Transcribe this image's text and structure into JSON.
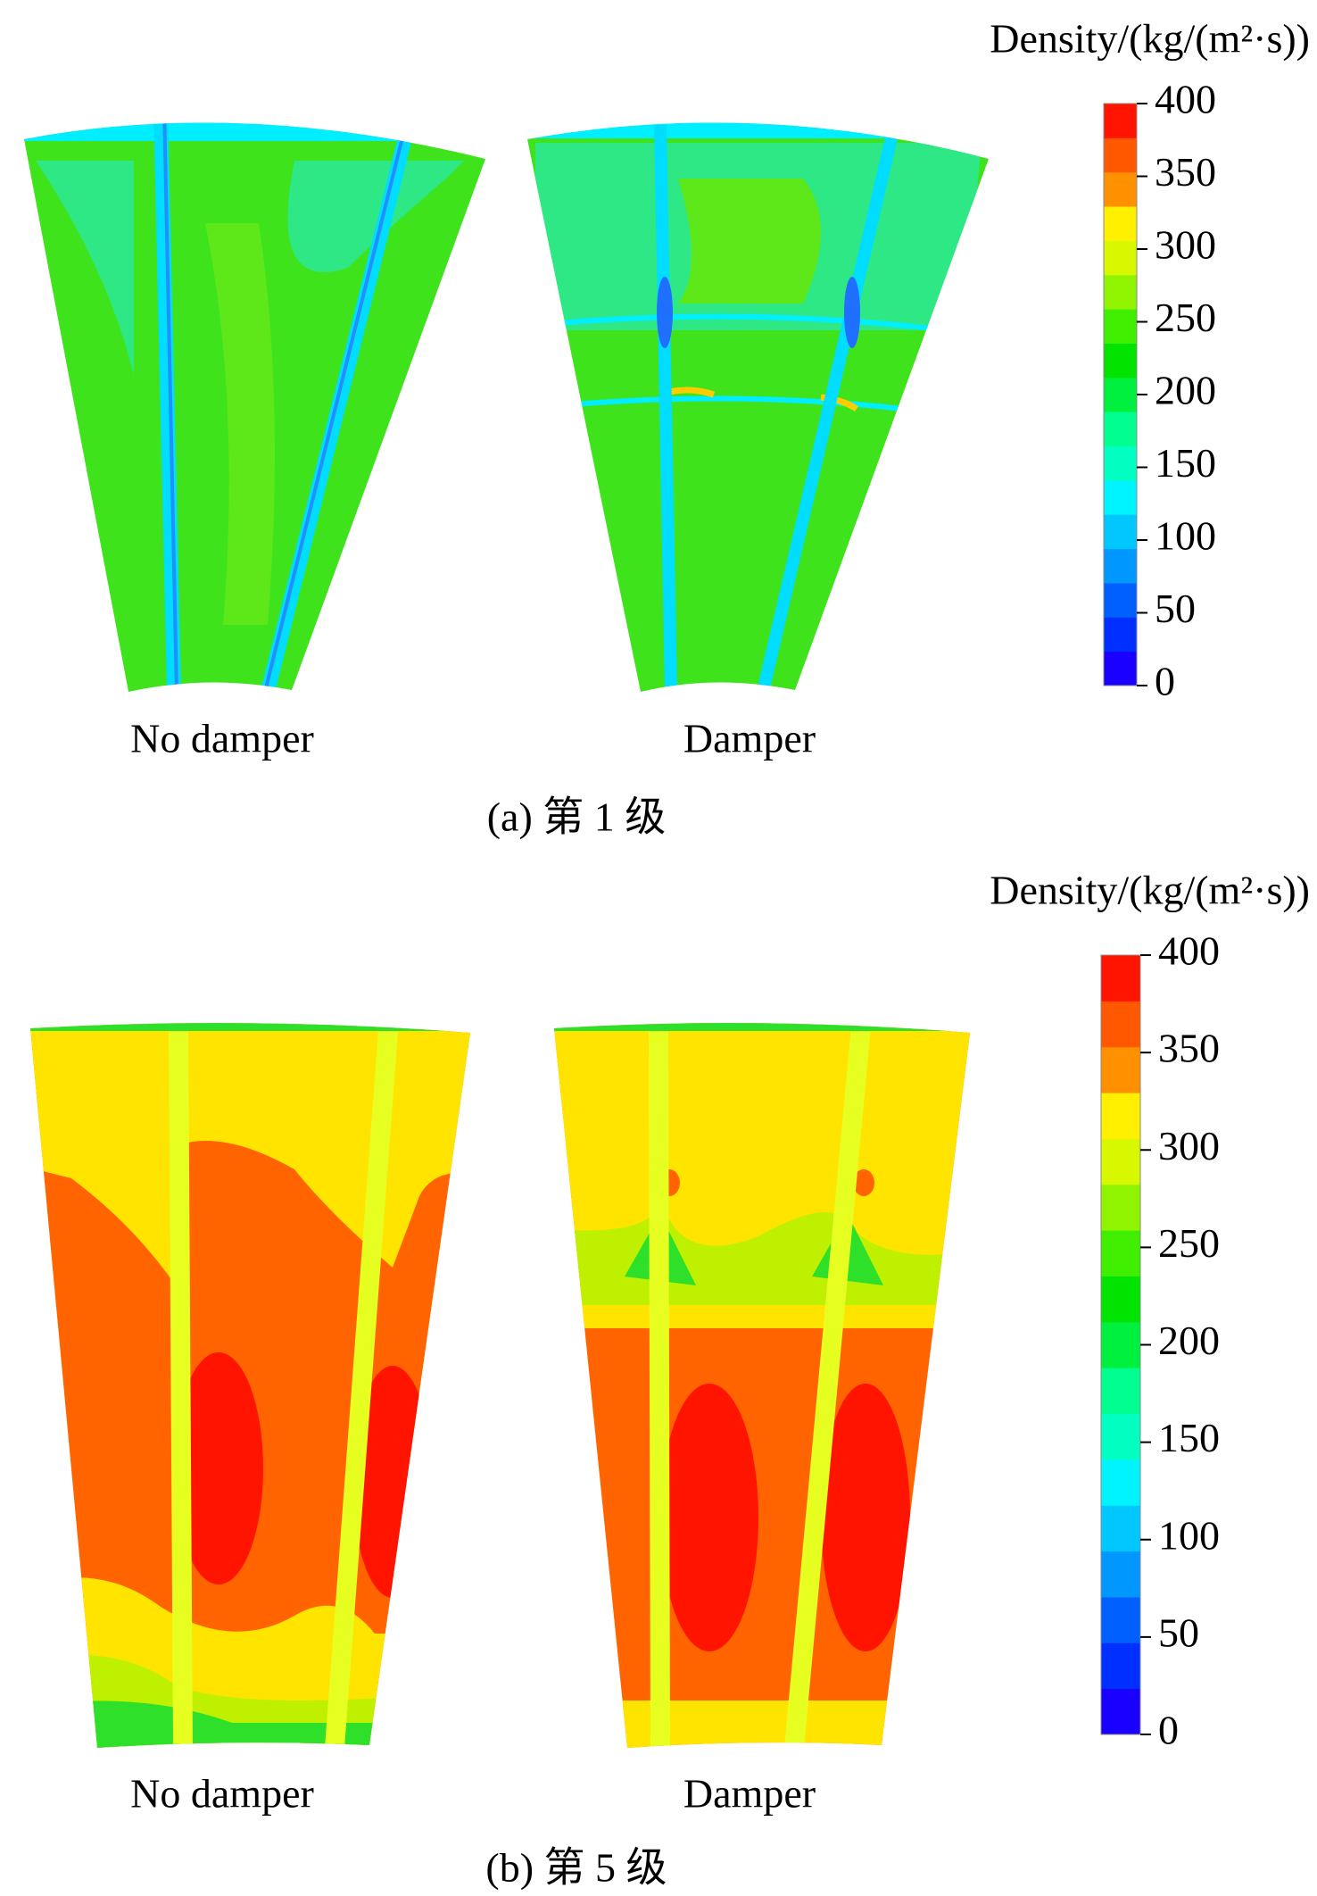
{
  "panels": [
    {
      "colorbar_title": "Density/(kg/(m²·s))",
      "ticks": [
        400,
        350,
        300,
        250,
        200,
        150,
        100,
        50,
        0
      ],
      "labels": [
        "No damper",
        "Damper"
      ],
      "caption": "(a) 第 1 级"
    },
    {
      "colorbar_title": "Density/(kg/(m²·s))",
      "ticks": [
        400,
        350,
        300,
        250,
        200,
        150,
        100,
        50,
        0
      ],
      "labels": [
        "No damper",
        "Damper"
      ],
      "caption": "(b) 第 5 级"
    }
  ]
}
